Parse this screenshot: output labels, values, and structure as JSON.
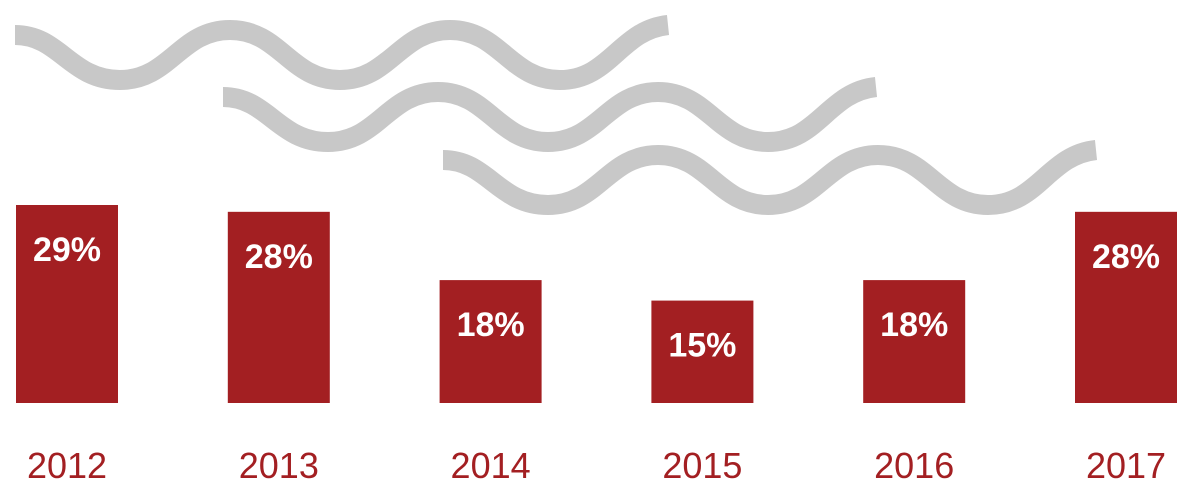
{
  "chart_data": {
    "type": "bar",
    "categories": [
      "2012",
      "2013",
      "2014",
      "2015",
      "2016",
      "2017"
    ],
    "values": [
      29,
      28,
      18,
      15,
      18,
      28
    ],
    "value_labels": [
      "29%",
      "28%",
      "18%",
      "15%",
      "18%",
      "28%"
    ],
    "color": "#a31f22"
  }
}
